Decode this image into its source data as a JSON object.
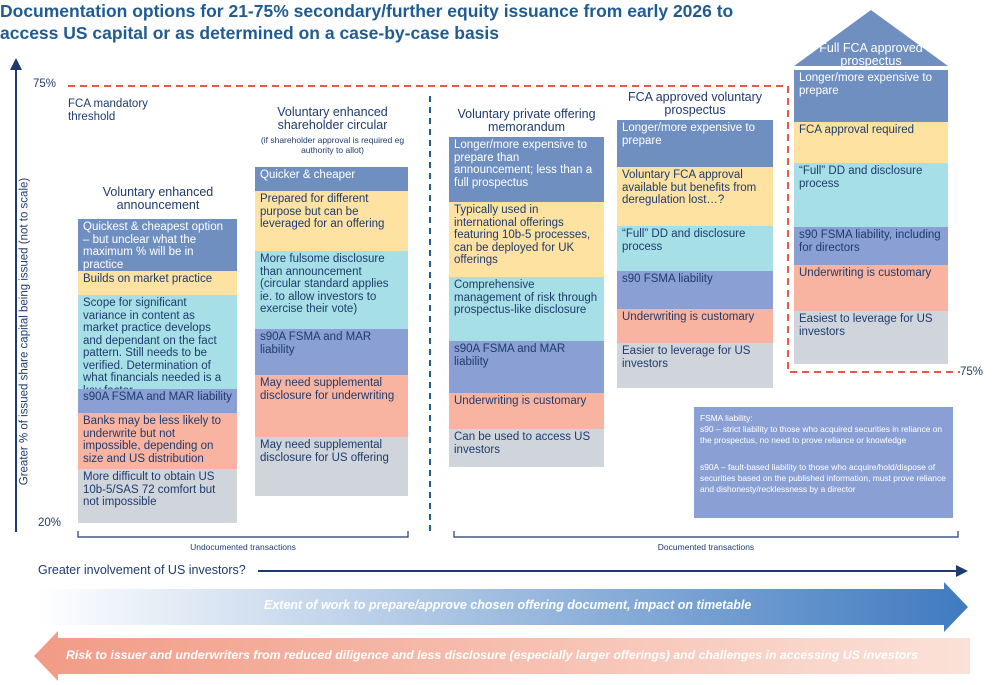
{
  "title": "Documentation options for 21-75% secondary/further equity issuance from early 2026 to access US capital or as determined on a case-by-case basis",
  "axis": {
    "y_label": "Greater % of issued share capital being issued (not to scale)",
    "top_pct": "75%",
    "bottom_pct": "20%",
    "right_pct": "75%",
    "x_label": "Greater involvement of US investors?",
    "threshold_label": "FCA mandatory threshold",
    "undocumented": "Undocumented transactions",
    "documented": "Documented transactions"
  },
  "columns": [
    {
      "id": "announcement",
      "heading": "Voluntary enhanced announcement",
      "subheading": "",
      "items": [
        {
          "text": "Quickest & cheapest option – but unclear what the maximum % will be in practice",
          "color": "#6f8fc0",
          "style": "light"
        },
        {
          "text": "Builds on market practice",
          "color": "#fde2a2",
          "style": "dark"
        },
        {
          "text": "Scope for significant variance in content as market practice develops and dependant on the fact pattern. Still needs to be verified. Determination of what financials needed is a key factor",
          "color": "#a7dfe6",
          "style": "dark"
        },
        {
          "text": "s90A FSMA and MAR liability",
          "color": "#8aa0d5",
          "style": "dark"
        },
        {
          "text": "Banks may be less likely to underwrite but not impossible, depending on size and US distribution",
          "color": "#f8b4a0",
          "style": "dark"
        },
        {
          "text": "More difficult to obtain US 10b-5/SAS 72 comfort but not impossible",
          "color": "#cfd5da",
          "style": "dark"
        }
      ]
    },
    {
      "id": "circular",
      "heading": "Voluntary enhanced shareholder circular",
      "subheading": "(if shareholder approval is required eg authority to allot)",
      "items": [
        {
          "text": "Quicker & cheaper",
          "color": "#6f8fc0",
          "style": "light"
        },
        {
          "text": "Prepared for different purpose but can be leveraged for an offering",
          "color": "#fde2a2",
          "style": "dark"
        },
        {
          "text": "More fulsome disclosure than announcement (circular standard applies ie. to allow investors to exercise their vote)",
          "color": "#a7dfe6",
          "style": "dark"
        },
        {
          "text": "s90A FSMA and MAR liability",
          "color": "#8aa0d5",
          "style": "dark"
        },
        {
          "text": "May need supplemental disclosure for underwriting",
          "color": "#f8b4a0",
          "style": "dark"
        },
        {
          "text": "May need supplemental disclosure for US offering",
          "color": "#cfd5da",
          "style": "dark"
        }
      ]
    },
    {
      "id": "private-offering",
      "heading": "Voluntary private offering memorandum",
      "subheading": "",
      "items": [
        {
          "text": "Longer/more expensive to prepare than announcement; less than a full prospectus",
          "color": "#6f8fc0",
          "style": "light"
        },
        {
          "text": "Typically used in international offerings featuring 10b-5 processes, can be deployed for UK offerings",
          "color": "#fde2a2",
          "style": "dark"
        },
        {
          "text": "Comprehensive management of risk through prospectus-like disclosure",
          "color": "#a7dfe6",
          "style": "dark"
        },
        {
          "text": "s90A FSMA and MAR liability",
          "color": "#8aa0d5",
          "style": "dark"
        },
        {
          "text": "Underwriting is customary",
          "color": "#f8b4a0",
          "style": "dark"
        },
        {
          "text": "Can be used to access US investors",
          "color": "#cfd5da",
          "style": "dark"
        }
      ]
    },
    {
      "id": "voluntary-prospectus",
      "heading": "FCA approved voluntary prospectus",
      "subheading": "",
      "items": [
        {
          "text": "Longer/more expensive to prepare",
          "color": "#6f8fc0",
          "style": "light"
        },
        {
          "text": "Voluntary FCA approval available but benefits from deregulation lost…?",
          "color": "#fde2a2",
          "style": "dark"
        },
        {
          "text": "“Full” DD and disclosure process",
          "color": "#a7dfe6",
          "style": "dark"
        },
        {
          "text": "s90 FSMA liability",
          "color": "#8aa0d5",
          "style": "dark"
        },
        {
          "text": "Underwriting is customary",
          "color": "#f8b4a0",
          "style": "dark"
        },
        {
          "text": "Easier to leverage for US investors",
          "color": "#cfd5da",
          "style": "dark"
        }
      ]
    },
    {
      "id": "full-prospectus",
      "heading": "Full FCA approved prospectus",
      "subheading": "",
      "items": [
        {
          "text": "Longer/more expensive to prepare",
          "color": "#6f8fc0",
          "style": "light"
        },
        {
          "text": "FCA approval required",
          "color": "#fde2a2",
          "style": "dark"
        },
        {
          "text": "“Full” DD and disclosure process",
          "color": "#a7dfe6",
          "style": "dark"
        },
        {
          "text": "s90 FSMA liability, including for directors",
          "color": "#8aa0d5",
          "style": "dark"
        },
        {
          "text": "Underwriting is customary",
          "color": "#f8b4a0",
          "style": "dark"
        },
        {
          "text": "Easiest to leverage for US investors",
          "color": "#cfd5da",
          "style": "dark"
        }
      ]
    }
  ],
  "legend": {
    "title": "FSMA liability:",
    "s90": "s90 – strict liability to those who acquired securities in reliance on the prospectus, no need to prove reliance or knowledge",
    "s90a": "s90A – fault-based liability to those who acquire/hold/dispose of securities based on the published information, must prove reliance and dishonesty/recklessness by a director"
  },
  "arrows": {
    "work": "Extent of work to prepare/approve chosen offering document, impact on timetable",
    "risk": "Risk to issuer and underwriters from reduced diligence and less disclosure (especially larger offerings) and challenges in accessing US investors"
  },
  "colors": {
    "title": "#1f5c93",
    "text": "#1f3b6e",
    "threshold_line": "#e8594a",
    "arrow_work": "#3f7ac0",
    "arrow_risk": "#f29b86"
  }
}
